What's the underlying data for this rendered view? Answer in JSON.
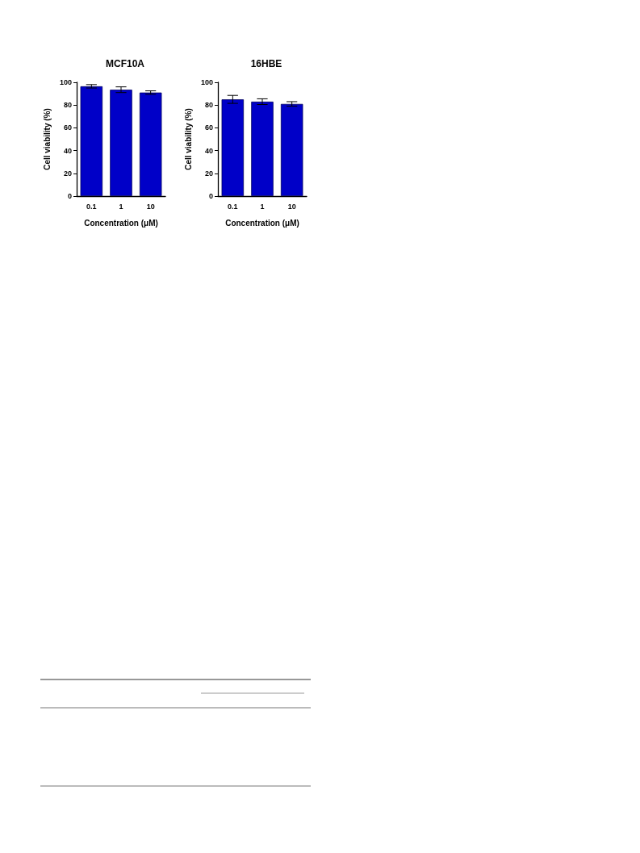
{
  "chart_data": [
    {
      "type": "bar",
      "title": "MCF10A",
      "xlabel": "Concentration (μM)",
      "ylabel": "Cell viability (%)",
      "categories": [
        "0.1",
        "1",
        "10"
      ],
      "values": [
        96.5,
        93.5,
        91
      ],
      "errors": [
        1.5,
        2.5,
        1.5
      ],
      "color": "#0000c8",
      "ylim": [
        0,
        100
      ],
      "yticks": [
        0,
        20,
        40,
        60,
        80,
        100
      ]
    },
    {
      "type": "bar",
      "title": "16HBE",
      "xlabel": "Concentration (μM)",
      "ylabel": "Cell viability (%)",
      "categories": [
        "0.1",
        "1",
        "10"
      ],
      "values": [
        85,
        83,
        81
      ],
      "errors": [
        3.5,
        2.5,
        2
      ],
      "color": "#0000c8",
      "ylim": [
        0,
        100
      ],
      "yticks": [
        0,
        20,
        40,
        60,
        80,
        100
      ]
    }
  ]
}
